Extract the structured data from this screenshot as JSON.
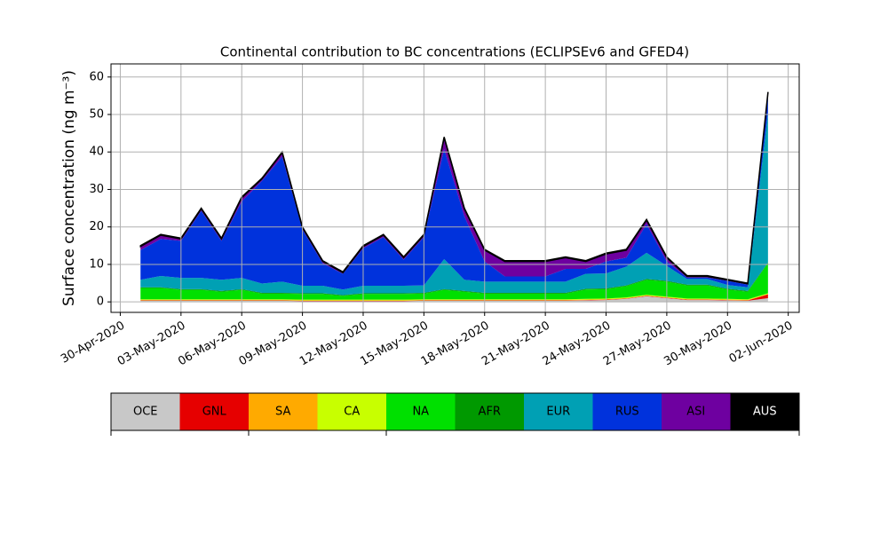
{
  "chart_data": {
    "type": "stacked_area",
    "title": "Continental contribution to BC concentrations (ECLIPSEv6 and GFED4)",
    "ylabel": "Surface concentration (ng m⁻³)",
    "x": [
      "2020-05-01",
      "2020-05-02",
      "2020-05-03",
      "2020-05-04",
      "2020-05-05",
      "2020-05-06",
      "2020-05-07",
      "2020-05-08",
      "2020-05-09",
      "2020-05-10",
      "2020-05-11",
      "2020-05-12",
      "2020-05-13",
      "2020-05-14",
      "2020-05-15",
      "2020-05-16",
      "2020-05-17",
      "2020-05-18",
      "2020-05-19",
      "2020-05-20",
      "2020-05-21",
      "2020-05-22",
      "2020-05-23",
      "2020-05-24",
      "2020-05-25",
      "2020-05-26",
      "2020-05-27",
      "2020-05-28",
      "2020-05-29",
      "2020-05-30",
      "2020-05-31",
      "2020-06-01"
    ],
    "series": [
      {
        "name": "OCE",
        "color": "#c8c8c8",
        "values": [
          0.3,
          0.3,
          0.3,
          0.3,
          0.3,
          0.3,
          0.3,
          0.3,
          0.2,
          0.2,
          0.2,
          0.2,
          0.2,
          0.2,
          0.3,
          0.3,
          0.3,
          0.3,
          0.3,
          0.3,
          0.3,
          0.3,
          0.4,
          0.5,
          0.8,
          1.5,
          1.0,
          0.5,
          0.5,
          0.4,
          0.3,
          1.0
        ]
      },
      {
        "name": "GNL",
        "color": "#e60000",
        "values": [
          0.1,
          0.1,
          0.1,
          0.1,
          0.1,
          0.1,
          0.1,
          0.1,
          0.1,
          0.1,
          0.1,
          0.1,
          0.1,
          0.1,
          0.1,
          0.1,
          0.1,
          0.1,
          0.1,
          0.1,
          0.1,
          0.1,
          0.1,
          0.1,
          0.1,
          0.1,
          0.1,
          0.1,
          0.1,
          0.1,
          0.1,
          1.0
        ]
      },
      {
        "name": "SA",
        "color": "#ffaa00",
        "values": [
          0.1,
          0.1,
          0.1,
          0.1,
          0.1,
          0.1,
          0.1,
          0.1,
          0.1,
          0.1,
          0.1,
          0.1,
          0.1,
          0.1,
          0.1,
          0.1,
          0.1,
          0.1,
          0.1,
          0.1,
          0.1,
          0.1,
          0.1,
          0.1,
          0.1,
          0.1,
          0.1,
          0.1,
          0.1,
          0.1,
          0.1,
          0.1
        ]
      },
      {
        "name": "CA",
        "color": "#c8ff00",
        "values": [
          0.2,
          0.2,
          0.2,
          0.2,
          0.2,
          0.2,
          0.2,
          0.2,
          0.2,
          0.2,
          0.2,
          0.2,
          0.2,
          0.2,
          0.2,
          0.2,
          0.2,
          0.2,
          0.2,
          0.2,
          0.2,
          0.2,
          0.2,
          0.2,
          0.2,
          0.2,
          0.2,
          0.2,
          0.2,
          0.2,
          0.2,
          0.2
        ]
      },
      {
        "name": "NA",
        "color": "#00e000",
        "values": [
          3,
          3,
          2.5,
          2.5,
          2,
          2.5,
          1.5,
          1.5,
          1.5,
          1.5,
          1,
          1.5,
          1.5,
          1.5,
          1.5,
          2.5,
          2,
          1.5,
          1.5,
          1.5,
          1.5,
          1.5,
          2.5,
          2.5,
          3,
          4,
          4,
          3.5,
          3.5,
          2.5,
          2,
          8
        ]
      },
      {
        "name": "AFR",
        "color": "#009900",
        "values": [
          0.2,
          0.2,
          0.2,
          0.2,
          0.2,
          0.2,
          0.2,
          0.2,
          0.2,
          0.2,
          0.2,
          0.2,
          0.2,
          0.2,
          0.2,
          0.2,
          0.2,
          0.2,
          0.2,
          0.2,
          0.2,
          0.2,
          0.2,
          0.2,
          0.2,
          0.2,
          0.2,
          0.2,
          0.2,
          0.2,
          0.2,
          0.2
        ]
      },
      {
        "name": "EUR",
        "color": "#00a0b4",
        "values": [
          2,
          3,
          3,
          3,
          3,
          3,
          2.5,
          3,
          2,
          2,
          1.5,
          2,
          2,
          2,
          2,
          8,
          3,
          3,
          3,
          3,
          3,
          3,
          4,
          4,
          5,
          7,
          4,
          1.5,
          1.5,
          1,
          1,
          40
        ]
      },
      {
        "name": "RUS",
        "color": "#0032dc",
        "values": [
          7.9,
          9.9,
          9.9,
          17.9,
          10.4,
          20.4,
          27.4,
          33.4,
          15,
          6,
          4.2,
          10,
          13,
          7,
          12.9,
          29.4,
          16.9,
          5.4,
          1.4,
          1.4,
          1.4,
          3.4,
          1.3,
          3.2,
          2.4,
          7.7,
          1.2,
          0.4,
          0.4,
          1.1,
          0.7,
          4.3
        ]
      },
      {
        "name": "ASI",
        "color": "#6e00a0",
        "values": [
          1,
          1,
          0.5,
          0.5,
          0.5,
          1,
          0.5,
          1,
          0.5,
          0.5,
          0.3,
          0.5,
          0.5,
          0.5,
          0.5,
          3,
          2,
          3,
          4,
          4,
          4,
          3,
          2,
          2,
          2,
          1,
          1,
          0.3,
          0.3,
          0.2,
          0.2,
          1
        ]
      },
      {
        "name": "AUS",
        "color": "#000000",
        "values": [
          0.2,
          0.2,
          0.2,
          0.2,
          0.2,
          0.2,
          0.2,
          0.2,
          0.2,
          0.2,
          0.2,
          0.2,
          0.2,
          0.2,
          0.2,
          0.2,
          0.2,
          0.2,
          0.2,
          0.2,
          0.2,
          0.2,
          0.2,
          0.2,
          0.2,
          0.2,
          0.2,
          0.2,
          0.2,
          0.2,
          0.2,
          0.2
        ]
      }
    ],
    "xlim": [
      "2020-04-29T13:00",
      "2020-06-02T13:00"
    ],
    "xticks": [
      {
        "value": "2020-04-30",
        "label": "30-Apr-2020"
      },
      {
        "value": "2020-05-03",
        "label": "03-May-2020"
      },
      {
        "value": "2020-05-06",
        "label": "06-May-2020"
      },
      {
        "value": "2020-05-09",
        "label": "09-May-2020"
      },
      {
        "value": "2020-05-12",
        "label": "12-May-2020"
      },
      {
        "value": "2020-05-15",
        "label": "15-May-2020"
      },
      {
        "value": "2020-05-18",
        "label": "18-May-2020"
      },
      {
        "value": "2020-05-21",
        "label": "21-May-2020"
      },
      {
        "value": "2020-05-24",
        "label": "24-May-2020"
      },
      {
        "value": "2020-05-27",
        "label": "27-May-2020"
      },
      {
        "value": "2020-05-30",
        "label": "30-May-2020"
      },
      {
        "value": "2020-06-02",
        "label": "02-Jun-2020"
      }
    ],
    "ylim": [
      -2.8,
      63.5
    ],
    "yticks": [
      0,
      10,
      20,
      30,
      40,
      50,
      60
    ],
    "grid": true,
    "legend": "bottom"
  }
}
